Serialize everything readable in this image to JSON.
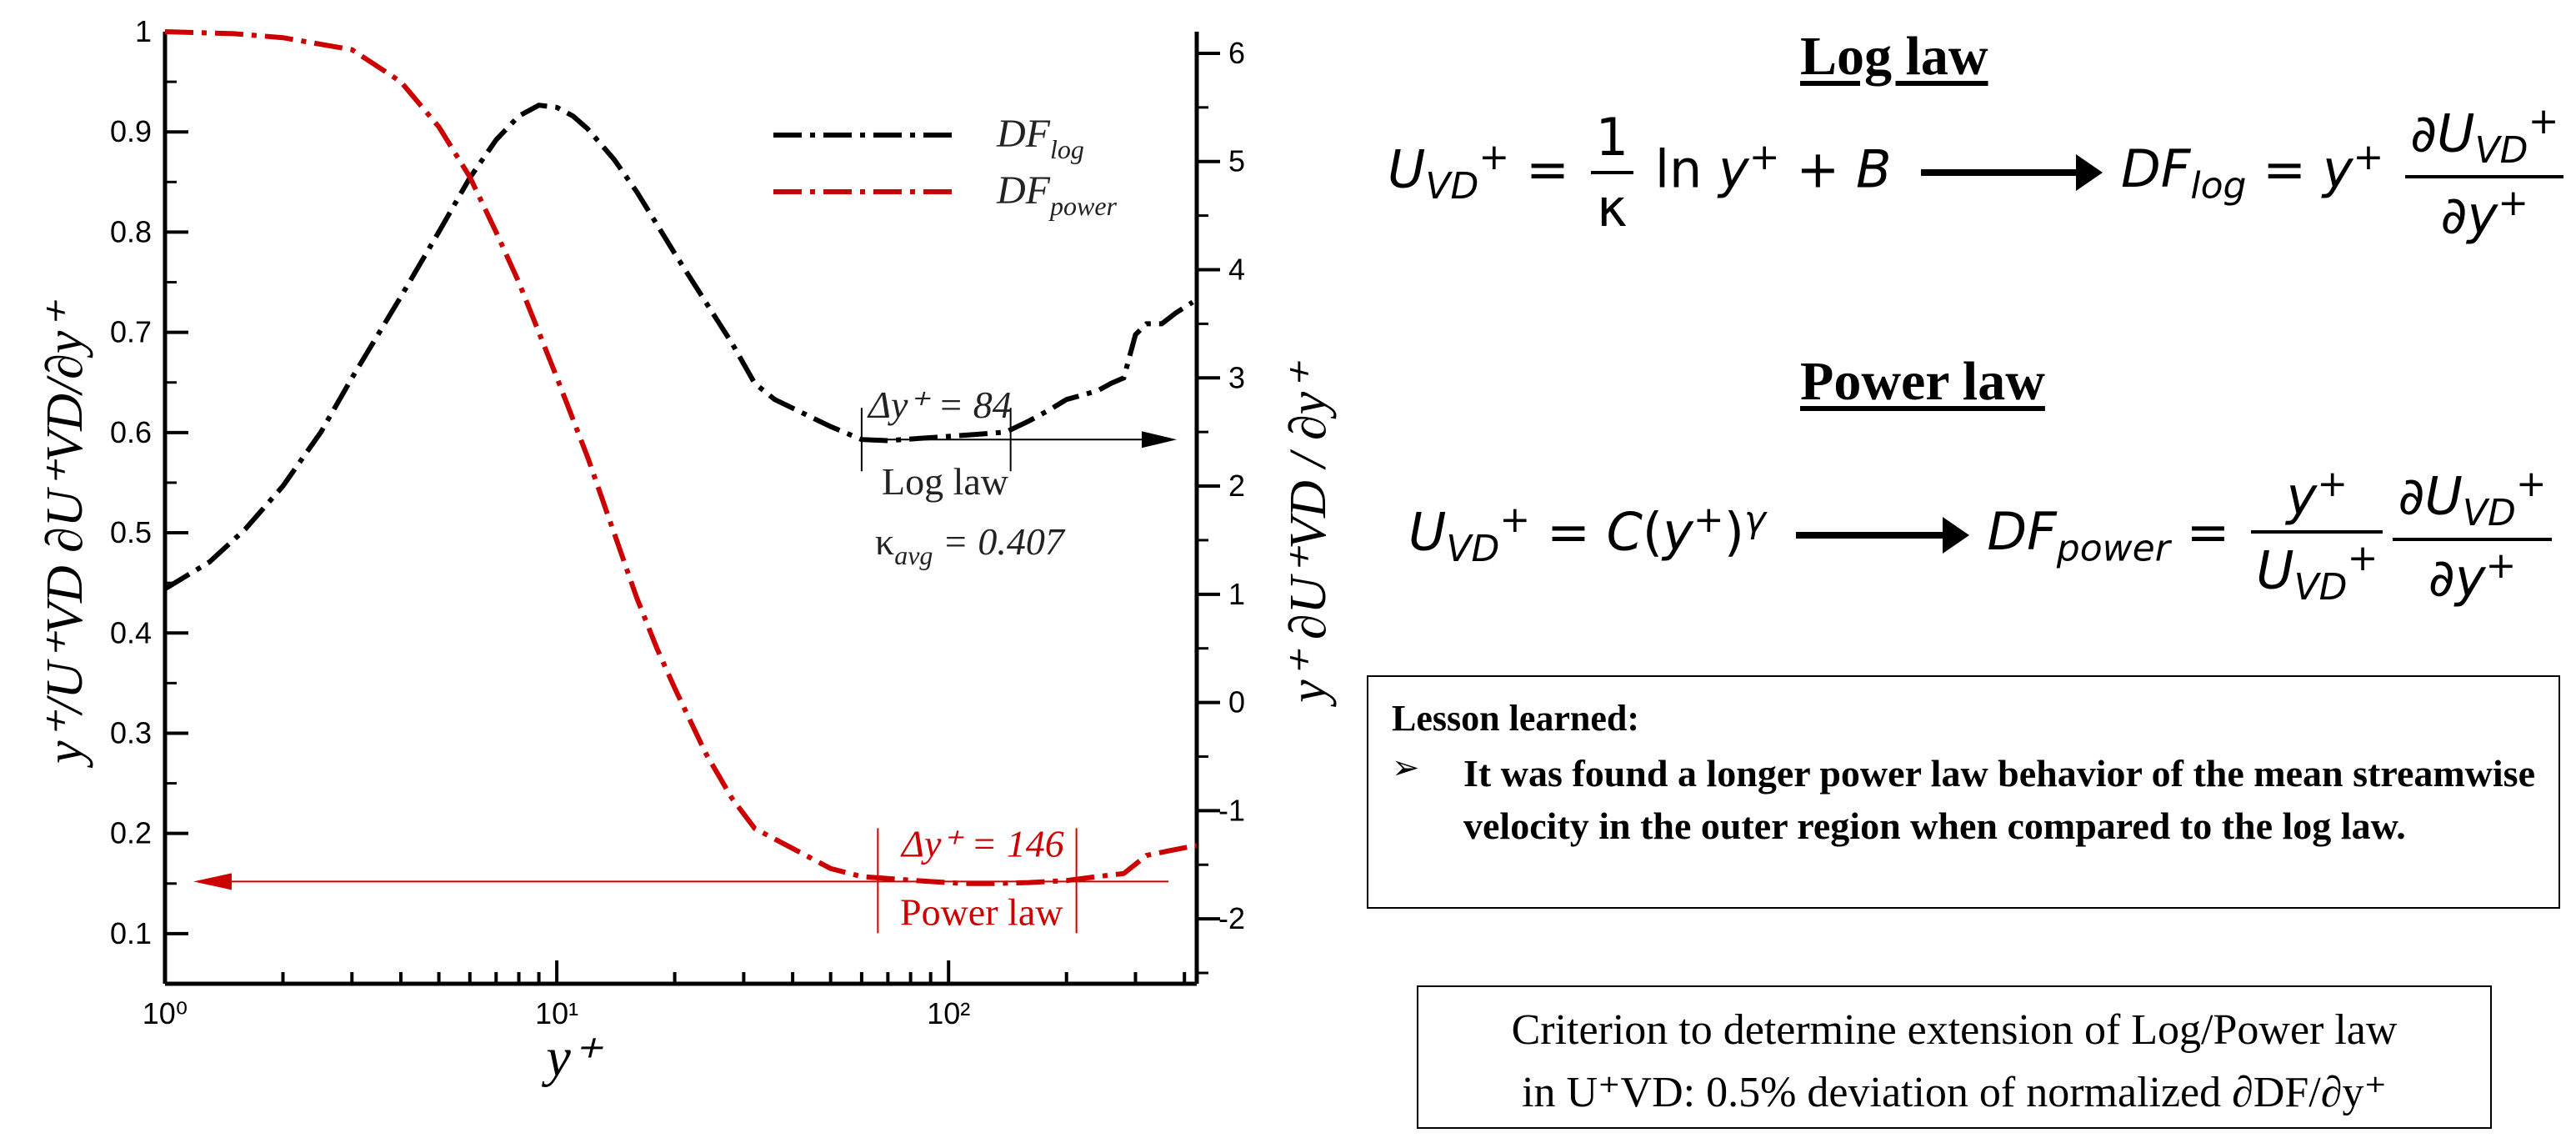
{
  "chart_data": {
    "type": "line",
    "x_scale": "log",
    "xlim": [
      1,
      430
    ],
    "ylim_left": [
      0.05,
      1.0
    ],
    "ylim_right": [
      -2.6,
      6.2
    ],
    "xlabel": "y⁺",
    "ylabel_left": "y⁺/U⁺VD ∂U⁺VD/∂y⁺",
    "ylabel_right": "y⁺ ∂U⁺VD / ∂y⁺",
    "x_ticks": [
      {
        "v": 1,
        "label": "10⁰"
      },
      {
        "v": 10,
        "label": "10¹"
      },
      {
        "v": 100,
        "label": "10²"
      }
    ],
    "y_left_ticks": [
      "0.1",
      "0.2",
      "0.3",
      "0.4",
      "0.5",
      "0.6",
      "0.7",
      "0.8",
      "0.9",
      "1"
    ],
    "y_right_ticks": [
      "-2",
      "-1",
      "0",
      "1",
      "2",
      "3",
      "4",
      "5",
      "6"
    ],
    "series": [
      {
        "name": "DF_log",
        "legend_main": "DF",
        "legend_sub": "log",
        "axis": "right",
        "color": "#000000",
        "style": "dash-dot",
        "points": [
          [
            1,
            1.05
          ],
          [
            1.3,
            1.3
          ],
          [
            1.6,
            1.6
          ],
          [
            2,
            2.0
          ],
          [
            2.5,
            2.5
          ],
          [
            3,
            3.0
          ],
          [
            4,
            3.75
          ],
          [
            5,
            4.35
          ],
          [
            6,
            4.85
          ],
          [
            7,
            5.2
          ],
          [
            8,
            5.42
          ],
          [
            9,
            5.52
          ],
          [
            10,
            5.5
          ],
          [
            11,
            5.42
          ],
          [
            12,
            5.3
          ],
          [
            14,
            5.02
          ],
          [
            16,
            4.72
          ],
          [
            18,
            4.42
          ],
          [
            20,
            4.15
          ],
          [
            24,
            3.7
          ],
          [
            28,
            3.32
          ],
          [
            32,
            2.95
          ],
          [
            36,
            2.8
          ],
          [
            40,
            2.72
          ],
          [
            50,
            2.55
          ],
          [
            60,
            2.43
          ],
          [
            70,
            2.42
          ],
          [
            84,
            2.44
          ],
          [
            100,
            2.46
          ],
          [
            120,
            2.48
          ],
          [
            140,
            2.5
          ],
          [
            160,
            2.6
          ],
          [
            180,
            2.7
          ],
          [
            200,
            2.8
          ],
          [
            240,
            2.88
          ],
          [
            260,
            2.95
          ],
          [
            280,
            3.0
          ],
          [
            300,
            3.4
          ],
          [
            320,
            3.5
          ],
          [
            350,
            3.5
          ],
          [
            380,
            3.6
          ],
          [
            420,
            3.7
          ]
        ]
      },
      {
        "name": "DF_power",
        "legend_main": "DF",
        "legend_sub": "power",
        "axis": "left",
        "color": "#cc0000",
        "style": "dash-dot",
        "points": [
          [
            1,
            1.0
          ],
          [
            1.5,
            0.998
          ],
          [
            2,
            0.994
          ],
          [
            3,
            0.982
          ],
          [
            4,
            0.95
          ],
          [
            5,
            0.905
          ],
          [
            6,
            0.855
          ],
          [
            7,
            0.8
          ],
          [
            8,
            0.75
          ],
          [
            9,
            0.7
          ],
          [
            10,
            0.655
          ],
          [
            12,
            0.575
          ],
          [
            14,
            0.5
          ],
          [
            16,
            0.435
          ],
          [
            18,
            0.385
          ],
          [
            20,
            0.345
          ],
          [
            24,
            0.28
          ],
          [
            28,
            0.235
          ],
          [
            32,
            0.205
          ],
          [
            40,
            0.185
          ],
          [
            50,
            0.165
          ],
          [
            60,
            0.157
          ],
          [
            70,
            0.155
          ],
          [
            90,
            0.152
          ],
          [
            110,
            0.15
          ],
          [
            130,
            0.15
          ],
          [
            160,
            0.151
          ],
          [
            200,
            0.153
          ],
          [
            240,
            0.157
          ],
          [
            280,
            0.16
          ],
          [
            320,
            0.178
          ],
          [
            380,
            0.184
          ],
          [
            430,
            0.188
          ]
        ]
      }
    ],
    "annotations": {
      "log_law": {
        "delta": "Δy⁺ = 84",
        "label": "Log law",
        "kappa_main": "κ",
        "kappa_sub": "avg",
        "kappa_value": " = 0.407"
      },
      "power_law": {
        "delta": "Δy⁺ = 146",
        "label": "Power law"
      }
    }
  },
  "right_panel": {
    "log_header": "Log law",
    "power_header": "Power law",
    "lesson_title": "Lesson learned:",
    "lesson_bullet": "It was found a longer power law behavior of the mean streamwise velocity in the outer region when compared to the log law.",
    "criterion_line1": "Criterion to determine extension of Log/Power law",
    "criterion_line2": "in U⁺VD: 0.5% deviation of normalized ∂DF/∂y⁺"
  }
}
